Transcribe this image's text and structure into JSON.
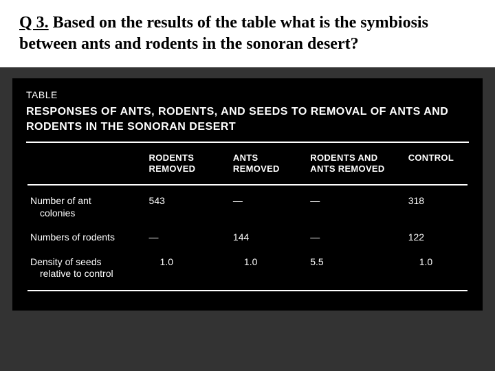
{
  "question": {
    "prefix": "Q 3.",
    "text": "Based on the results of the table what is the symbiosis between ants and rodents in the sonoran desert?"
  },
  "table": {
    "label": "TABLE",
    "title": "RESPONSES OF ANTS, RODENTS, AND SEEDS TO REMOVAL OF ANTS AND RODENTS IN THE SONORAN DESERT",
    "columns": [
      {
        "line1": "RODENTS",
        "line2": "REMOVED"
      },
      {
        "line1": "ANTS",
        "line2": "REMOVED"
      },
      {
        "line1": "RODENTS AND",
        "line2": "ANTS REMOVED"
      },
      {
        "line1": "CONTROL",
        "line2": ""
      }
    ],
    "rows": [
      {
        "label_line1": "Number of ant",
        "label_line2": "colonies",
        "c1": "543",
        "c2": "—",
        "c3": "—",
        "c4": "318"
      },
      {
        "label_line1": "Numbers of rodents",
        "label_line2": "",
        "c1": "—",
        "c2": "144",
        "c3": "—",
        "c4": "122"
      },
      {
        "label_line1": "Density of seeds",
        "label_line2": "relative to control",
        "c1": "1.0",
        "c2": "1.0",
        "c3": "5.5",
        "c4": "1.0"
      }
    ],
    "colors": {
      "page_bg": "#333333",
      "question_bg": "#ffffff",
      "question_text": "#000000",
      "table_bg": "#000000",
      "table_text": "#ffffff",
      "rule": "#ffffff"
    },
    "typography": {
      "question_fontsize_pt": 18,
      "question_fontweight": "bold",
      "question_fontfamily": "serif",
      "table_fontfamily": "sans-serif",
      "table_label_fontsize_pt": 10,
      "table_title_fontsize_pt": 12,
      "header_fontsize_pt": 10,
      "cell_fontsize_pt": 10
    }
  }
}
